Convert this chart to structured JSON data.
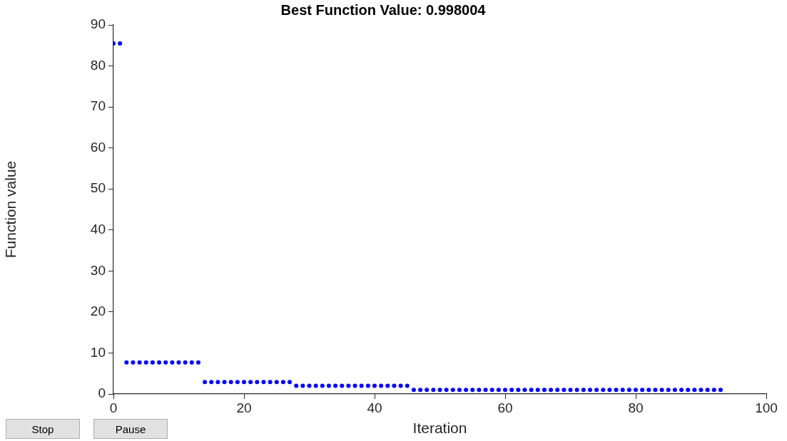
{
  "chart_data": {
    "type": "scatter",
    "title": "Best Function Value: 0.998004",
    "xlabel": "Iteration",
    "ylabel": "Function value",
    "x": [
      0,
      1,
      2,
      3,
      4,
      5,
      6,
      7,
      8,
      9,
      10,
      11,
      12,
      13,
      14,
      15,
      16,
      17,
      18,
      19,
      20,
      21,
      22,
      23,
      24,
      25,
      26,
      27,
      28,
      29,
      30,
      31,
      32,
      33,
      34,
      35,
      36,
      37,
      38,
      39,
      40,
      41,
      42,
      43,
      44,
      45,
      46,
      47,
      48,
      49,
      50,
      51,
      52,
      53,
      54,
      55,
      56,
      57,
      58,
      59,
      60,
      61,
      62,
      63,
      64,
      65,
      66,
      67,
      68,
      69,
      70,
      71,
      72,
      73,
      74,
      75,
      76,
      77,
      78,
      79,
      80,
      81,
      82,
      83,
      84,
      85,
      86,
      87,
      88,
      89,
      90,
      91,
      92,
      93
    ],
    "values": [
      85.5,
      85.5,
      7.7,
      7.7,
      7.7,
      7.7,
      7.7,
      7.7,
      7.7,
      7.7,
      7.7,
      7.7,
      7.7,
      7.7,
      2.9,
      2.9,
      2.9,
      2.9,
      2.9,
      2.9,
      2.9,
      2.9,
      2.9,
      2.9,
      2.9,
      2.9,
      2.9,
      2.9,
      2,
      2,
      2,
      2,
      2,
      2,
      2,
      2,
      2,
      2,
      2,
      2,
      2,
      2,
      2,
      2,
      2,
      2,
      0.998,
      0.998,
      0.998,
      0.998,
      0.998,
      0.998,
      0.998,
      0.998,
      0.998,
      0.998,
      0.998,
      0.998,
      0.998,
      0.998,
      0.998,
      0.998,
      0.998,
      0.998,
      0.998,
      0.998,
      0.998,
      0.998,
      0.998,
      0.998,
      0.998,
      0.998,
      0.998,
      0.998,
      0.998,
      0.998,
      0.998,
      0.998,
      0.998,
      0.998,
      0.998,
      0.998,
      0.998,
      0.998,
      0.998,
      0.998,
      0.998,
      0.998,
      0.998,
      0.998,
      0.998,
      0.998,
      0.998,
      0.998
    ],
    "color": "#0000ff",
    "marker": "circle",
    "xlim": [
      0,
      100
    ],
    "xticks": [
      0,
      20,
      40,
      60,
      80,
      100
    ],
    "ylim": [
      0,
      90
    ],
    "yticks": [
      0,
      10,
      20,
      30,
      40,
      50,
      60,
      70,
      80,
      90
    ],
    "grid": false,
    "legend": false,
    "annotations": [
      "Stop",
      "Pause"
    ]
  }
}
